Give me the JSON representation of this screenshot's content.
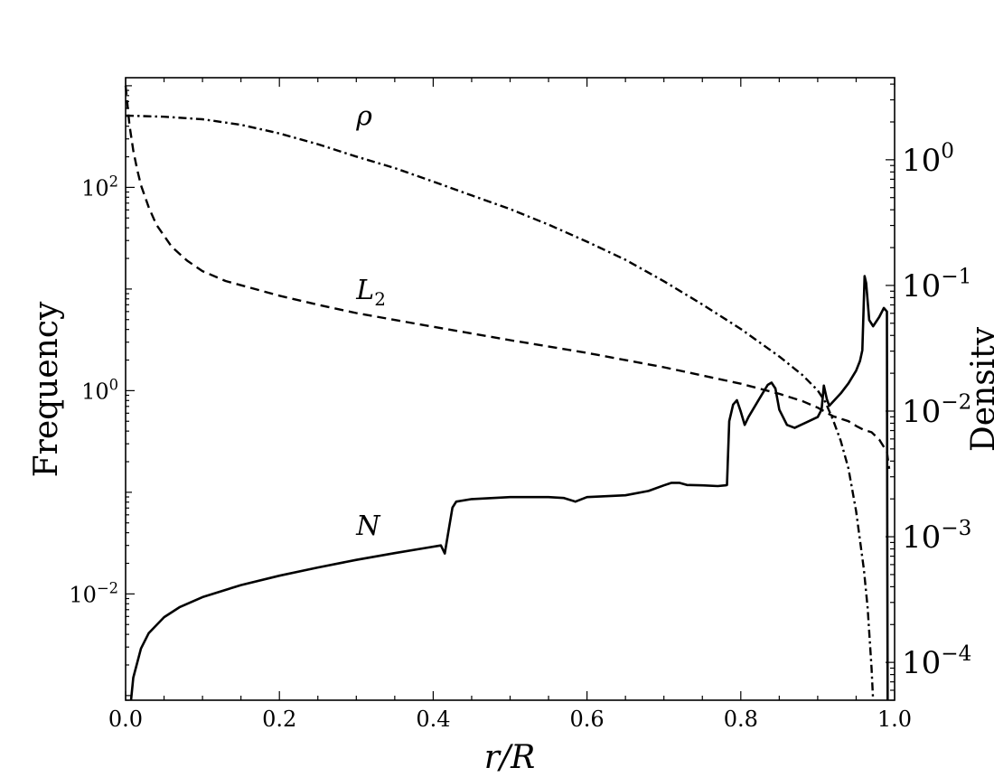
{
  "chart_data": {
    "type": "line",
    "xlabel": "r/R",
    "ylabel_left": "Frequency",
    "ylabel_right": "Density",
    "xlim": [
      0.0,
      1.0
    ],
    "ylim_left": [
      0.0009,
      1200
    ],
    "ylim_right": [
      5e-05,
      4.5
    ],
    "yscale_left": "log",
    "yscale_right": "log",
    "grid": false,
    "legend": "none",
    "x_ticks": [
      {
        "value": 0.0,
        "label": "0.0"
      },
      {
        "value": 0.2,
        "label": "0.2"
      },
      {
        "value": 0.4,
        "label": "0.4"
      },
      {
        "value": 0.6,
        "label": "0.6"
      },
      {
        "value": 0.8,
        "label": "0.8"
      },
      {
        "value": 1.0,
        "label": "1.0"
      }
    ],
    "y_left_ticks": [
      {
        "value": 0.01,
        "base": "10",
        "exp": "−2"
      },
      {
        "value": 1,
        "base": "10",
        "exp": "0"
      },
      {
        "value": 100,
        "base": "10",
        "exp": "2"
      }
    ],
    "y_right_ticks": [
      {
        "value": 0.0001,
        "base": "10",
        "exp": "−4"
      },
      {
        "value": 0.001,
        "base": "10",
        "exp": "−3"
      },
      {
        "value": 0.01,
        "base": "10",
        "exp": "−2"
      },
      {
        "value": 0.1,
        "base": "10",
        "exp": "−1"
      },
      {
        "value": 1,
        "base": "10",
        "exp": "0"
      }
    ],
    "annotations": [
      {
        "text": "ρ",
        "x": 0.3,
        "y": 410,
        "axis": "left"
      },
      {
        "text": "L",
        "sub": "2",
        "x": 0.3,
        "y": 8.0,
        "axis": "left"
      },
      {
        "text": "N",
        "x": 0.3,
        "y": 0.038,
        "axis": "left"
      }
    ],
    "series": [
      {
        "id": "N",
        "axis": "left",
        "style": "solid",
        "width": 2.6,
        "points": [
          [
            0.007,
            0.0009
          ],
          [
            0.01,
            0.0015
          ],
          [
            0.02,
            0.0029
          ],
          [
            0.03,
            0.0041
          ],
          [
            0.05,
            0.0059
          ],
          [
            0.07,
            0.0074
          ],
          [
            0.1,
            0.0093
          ],
          [
            0.15,
            0.0122
          ],
          [
            0.2,
            0.0151
          ],
          [
            0.25,
            0.0182
          ],
          [
            0.3,
            0.0216
          ],
          [
            0.35,
            0.0252
          ],
          [
            0.39,
            0.0283
          ],
          [
            0.41,
            0.03
          ],
          [
            0.415,
            0.025
          ],
          [
            0.42,
            0.042
          ],
          [
            0.425,
            0.0707
          ],
          [
            0.43,
            0.0809
          ],
          [
            0.45,
            0.0858
          ],
          [
            0.5,
            0.0897
          ],
          [
            0.55,
            0.0897
          ],
          [
            0.57,
            0.0878
          ],
          [
            0.585,
            0.081
          ],
          [
            0.6,
            0.0897
          ],
          [
            0.65,
            0.0935
          ],
          [
            0.68,
            0.103
          ],
          [
            0.7,
            0.117
          ],
          [
            0.71,
            0.124
          ],
          [
            0.72,
            0.124
          ],
          [
            0.73,
            0.118
          ],
          [
            0.75,
            0.117
          ],
          [
            0.77,
            0.115
          ],
          [
            0.78,
            0.117
          ],
          [
            0.782,
            0.118
          ],
          [
            0.785,
            0.5
          ],
          [
            0.79,
            0.73
          ],
          [
            0.795,
            0.805
          ],
          [
            0.8,
            0.62
          ],
          [
            0.805,
            0.46
          ],
          [
            0.81,
            0.55
          ],
          [
            0.825,
            0.853
          ],
          [
            0.835,
            1.14
          ],
          [
            0.84,
            1.2
          ],
          [
            0.845,
            1.05
          ],
          [
            0.85,
            0.65
          ],
          [
            0.86,
            0.46
          ],
          [
            0.87,
            0.43
          ],
          [
            0.9,
            0.55
          ],
          [
            0.905,
            0.65
          ],
          [
            0.908,
            1.12
          ],
          [
            0.912,
            0.82
          ],
          [
            0.915,
            0.71
          ],
          [
            0.93,
            0.94
          ],
          [
            0.94,
            1.18
          ],
          [
            0.95,
            1.57
          ],
          [
            0.955,
            1.96
          ],
          [
            0.958,
            2.5
          ],
          [
            0.961,
            13.4
          ],
          [
            0.963,
            11.5
          ],
          [
            0.967,
            4.95
          ],
          [
            0.972,
            4.3
          ],
          [
            0.98,
            5.3
          ],
          [
            0.986,
            6.5
          ],
          [
            0.99,
            6.0
          ],
          [
            0.9905,
            0.04
          ],
          [
            0.991,
            0.0009
          ]
        ]
      },
      {
        "id": "L2",
        "axis": "left",
        "style": "dashed",
        "width": 2.4,
        "points": [
          [
            0.0,
            1000
          ],
          [
            0.005,
            410
          ],
          [
            0.01,
            230
          ],
          [
            0.015,
            150
          ],
          [
            0.02,
            105
          ],
          [
            0.03,
            64
          ],
          [
            0.04,
            43
          ],
          [
            0.06,
            26
          ],
          [
            0.08,
            19
          ],
          [
            0.1,
            15
          ],
          [
            0.13,
            12
          ],
          [
            0.2,
            8.6
          ],
          [
            0.25,
            7.0
          ],
          [
            0.3,
            5.8
          ],
          [
            0.4,
            4.25
          ],
          [
            0.5,
            3.14
          ],
          [
            0.6,
            2.35
          ],
          [
            0.7,
            1.7
          ],
          [
            0.8,
            1.17
          ],
          [
            0.85,
            0.93
          ],
          [
            0.88,
            0.79
          ],
          [
            0.9,
            0.68
          ],
          [
            0.92,
            0.56
          ],
          [
            0.94,
            0.5
          ],
          [
            0.95,
            0.45
          ],
          [
            0.96,
            0.41
          ],
          [
            0.97,
            0.39
          ],
          [
            0.98,
            0.33
          ],
          [
            0.99,
            0.25
          ],
          [
            0.993,
            0.17
          ]
        ]
      },
      {
        "id": "rho",
        "axis": "right",
        "style": "dashdot",
        "width": 2.4,
        "points": [
          [
            0.0,
            2.25
          ],
          [
            0.05,
            2.2
          ],
          [
            0.1,
            2.1
          ],
          [
            0.15,
            1.9
          ],
          [
            0.2,
            1.62
          ],
          [
            0.25,
            1.33
          ],
          [
            0.3,
            1.06
          ],
          [
            0.35,
            0.86
          ],
          [
            0.4,
            0.67
          ],
          [
            0.45,
            0.52
          ],
          [
            0.5,
            0.405
          ],
          [
            0.55,
            0.305
          ],
          [
            0.6,
            0.223
          ],
          [
            0.65,
            0.16
          ],
          [
            0.7,
            0.108
          ],
          [
            0.75,
            0.0705
          ],
          [
            0.8,
            0.045
          ],
          [
            0.85,
            0.0272
          ],
          [
            0.88,
            0.0194
          ],
          [
            0.9,
            0.0146
          ],
          [
            0.91,
            0.0118
          ],
          [
            0.92,
            0.0085
          ],
          [
            0.93,
            0.0058
          ],
          [
            0.94,
            0.0035
          ],
          [
            0.95,
            0.0016
          ],
          [
            0.96,
            0.00055
          ],
          [
            0.965,
            0.00027
          ],
          [
            0.97,
            9e-05
          ],
          [
            0.972,
            5e-05
          ]
        ]
      }
    ]
  }
}
